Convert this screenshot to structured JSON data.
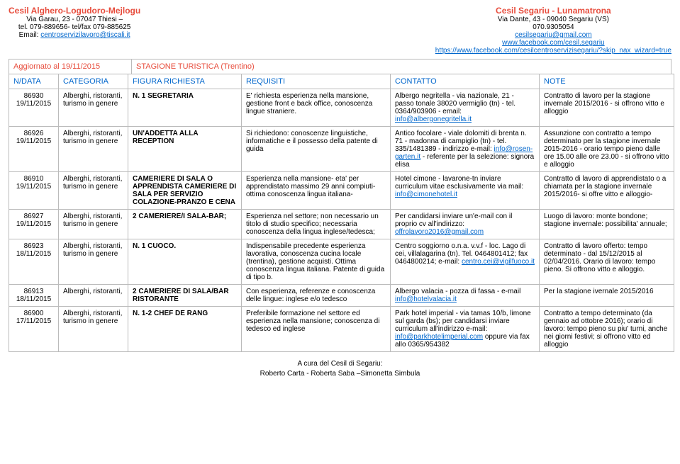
{
  "header_left": {
    "title": "Cesil Alghero-Logudoro-Mejlogu",
    "lines": [
      "Via Garau, 23 - 07047 Thiesi –",
      "tel. 079-889656- tel/fax 079-885625"
    ],
    "email_label": "Email: ",
    "email": "centroservizilavoro@tiscali.it"
  },
  "header_right": {
    "title": "Cesil Segariu - Lunamatrona",
    "lines": [
      "Via Dante, 43 - 09040 Segariu (VS)",
      "070.9305054"
    ],
    "email": "cesilsegariu@gmail.com",
    "link1": "www.facebook.com/cesil.segariu",
    "link2": "https://www.facebook.com/cesilcentroservizisegariu/?skip_nax_wizard=true"
  },
  "update": {
    "label": "Aggiornato al 19/11/2015",
    "section": "STAGIONE TURISTICA (Trentino)"
  },
  "columns": [
    "N/DATA",
    "CATEGORIA",
    "FIGURA RICHIESTA",
    "REQUISITI",
    "CONTATTO",
    "NOTE"
  ],
  "rows": [
    {
      "id": "86930",
      "date": "19/11/2015",
      "cat": "Alberghi, ristoranti, turismo in genere",
      "fig": "N. 1 SEGRETARIA",
      "req": "E' richiesta esperienza nella mansione, gestione front e back office, conoscenza lingue straniere.",
      "contact_pre": "Albergo negritella - via nazionale, 21 - passo tonale 38020 vermiglio (tn) - tel. 0364/903906 - email: ",
      "contact_mail": "info@albergonegritella.it",
      "note": "Contratto di lavoro per la stagione invernale 2015/2016 - si offrono vitto e alloggio"
    },
    {
      "id": "86926",
      "date": "19/11/2015",
      "cat": "Alberghi, ristoranti, turismo in genere",
      "fig": "UN'ADDETTA ALLA RECEPTION",
      "req": "Si richiedono: conoscenze linguistiche, informatiche e il possesso della patente di guida",
      "contact_pre": "Antico focolare - viale dolomiti di brenta n. 71 - madonna di campiglio (tn) - tel. 335/1481389 - indirizzo e-mail: ",
      "contact_mail": "info@rosen-garten.it",
      "contact_post": " - referente per la selezione: signora elisa",
      "note": "Assunzione con contratto a tempo determinato per la stagione invernale 2015-2016 - orario tempo pieno dalle ore 15.00 alle ore 23.00 - si offrono vitto e alloggio"
    },
    {
      "id": "86910",
      "date": "19/11/2015",
      "cat": "Alberghi, ristoranti, turismo in genere",
      "fig": "CAMERIERE DI SALA O APPRENDISTA CAMERIERE DI SALA PER SERVIZIO COLAZIONE-PRANZO E CENA",
      "req": "Esperienza nella mansione- eta' per apprendistato massimo 29 anni compiuti- ottima conoscenza lingua italiana-",
      "contact_pre": "Hotel cimone - lavarone-tn inviare curriculum vitae esclusivamente via mail: ",
      "contact_mail": "info@cimonehotel.it",
      "note": "Contratto di lavoro di apprendistato o a chiamata per la stagione invernale 2015/2016- si offre vitto e alloggio-"
    },
    {
      "id": "86927",
      "date": "19/11/2015",
      "cat": "Alberghi, ristoranti, turismo in genere",
      "fig": "2 CAMERIERE/I SALA-BAR;",
      "req": "Esperienza nel settore; non necessario un titolo di studio specifico; necessaria conoscenza della lingua inglese/tedesca;",
      "contact_pre": "Per candidarsi inviare un'e-mail con il proprio cv all'indirizzo: ",
      "contact_mail": "offrolavoro2016@gmail.com",
      "note": "Luogo di lavoro: monte bondone; stagione invernale: possibilita' annuale;"
    },
    {
      "id": "86923",
      "date": "18/11/2015",
      "cat": "Alberghi, ristoranti, turismo in genere",
      "fig": "N. 1 CUOCO.",
      "req": "Indispensabile precedente esperienza lavorativa, conoscenza cucina locale (trentina), gestione acquisti. Ottima conoscenza lingua italiana. Patente di guida di tipo b.",
      "contact_pre": "Centro soggiorno o.n.a. v.v.f - loc. Lago di cei, villalagarina (tn). Tel. 0464801412; fax 0464800214; e-mail: ",
      "contact_mail": "centro.cei@vigilfuoco.it",
      "note": "Contratto di lavoro offerto: tempo determinato - dal 15/12/2015 al 02/04/2016. Orario di lavoro: tempo pieno. Si offrono vitto e alloggio."
    },
    {
      "id": "86913",
      "date": "18/11/2015",
      "cat": "Alberghi, ristoranti,",
      "fig": "2 CAMERIERE DI SALA/BAR RISTORANTE",
      "req": "Con esperienza, referenze e conoscenza delle lingue: inglese e/o tedesco",
      "contact_pre": "Albergo valacia - pozza di fassa - e-mail ",
      "contact_mail": "info@hotelvalacia.it",
      "note": "Per la stagione ivernale 2015/2016"
    },
    {
      "id": "86900",
      "date": "17/11/2015",
      "cat": "Alberghi, ristoranti, turismo in genere",
      "fig": "N. 1-2 CHEF DE RANG",
      "req": "Preferibile formazione nel settore ed esperienza nella mansione; conoscenza di tedesco ed inglese",
      "contact_pre": "Park hotel imperial - via tamas 10/b, limone sul garda (bs); per candidarsi inviare curriculum all'indirizzo e-mail: ",
      "contact_mail": "info@parkhotelimperial.com",
      "contact_post": " oppure via fax allo 0365/954382",
      "note": "Contratto a tempo determinato (da gennaio ad ottobre 2016); orario di lavoro: tempo pieno su piu' turni, anche nei giorni festivi; si offrono vitto ed alloggio"
    }
  ],
  "footer": {
    "l1": "A cura del Cesil di Segariu:",
    "l2": "Roberto Carta - Roberta Saba –Simonetta Simbula"
  }
}
